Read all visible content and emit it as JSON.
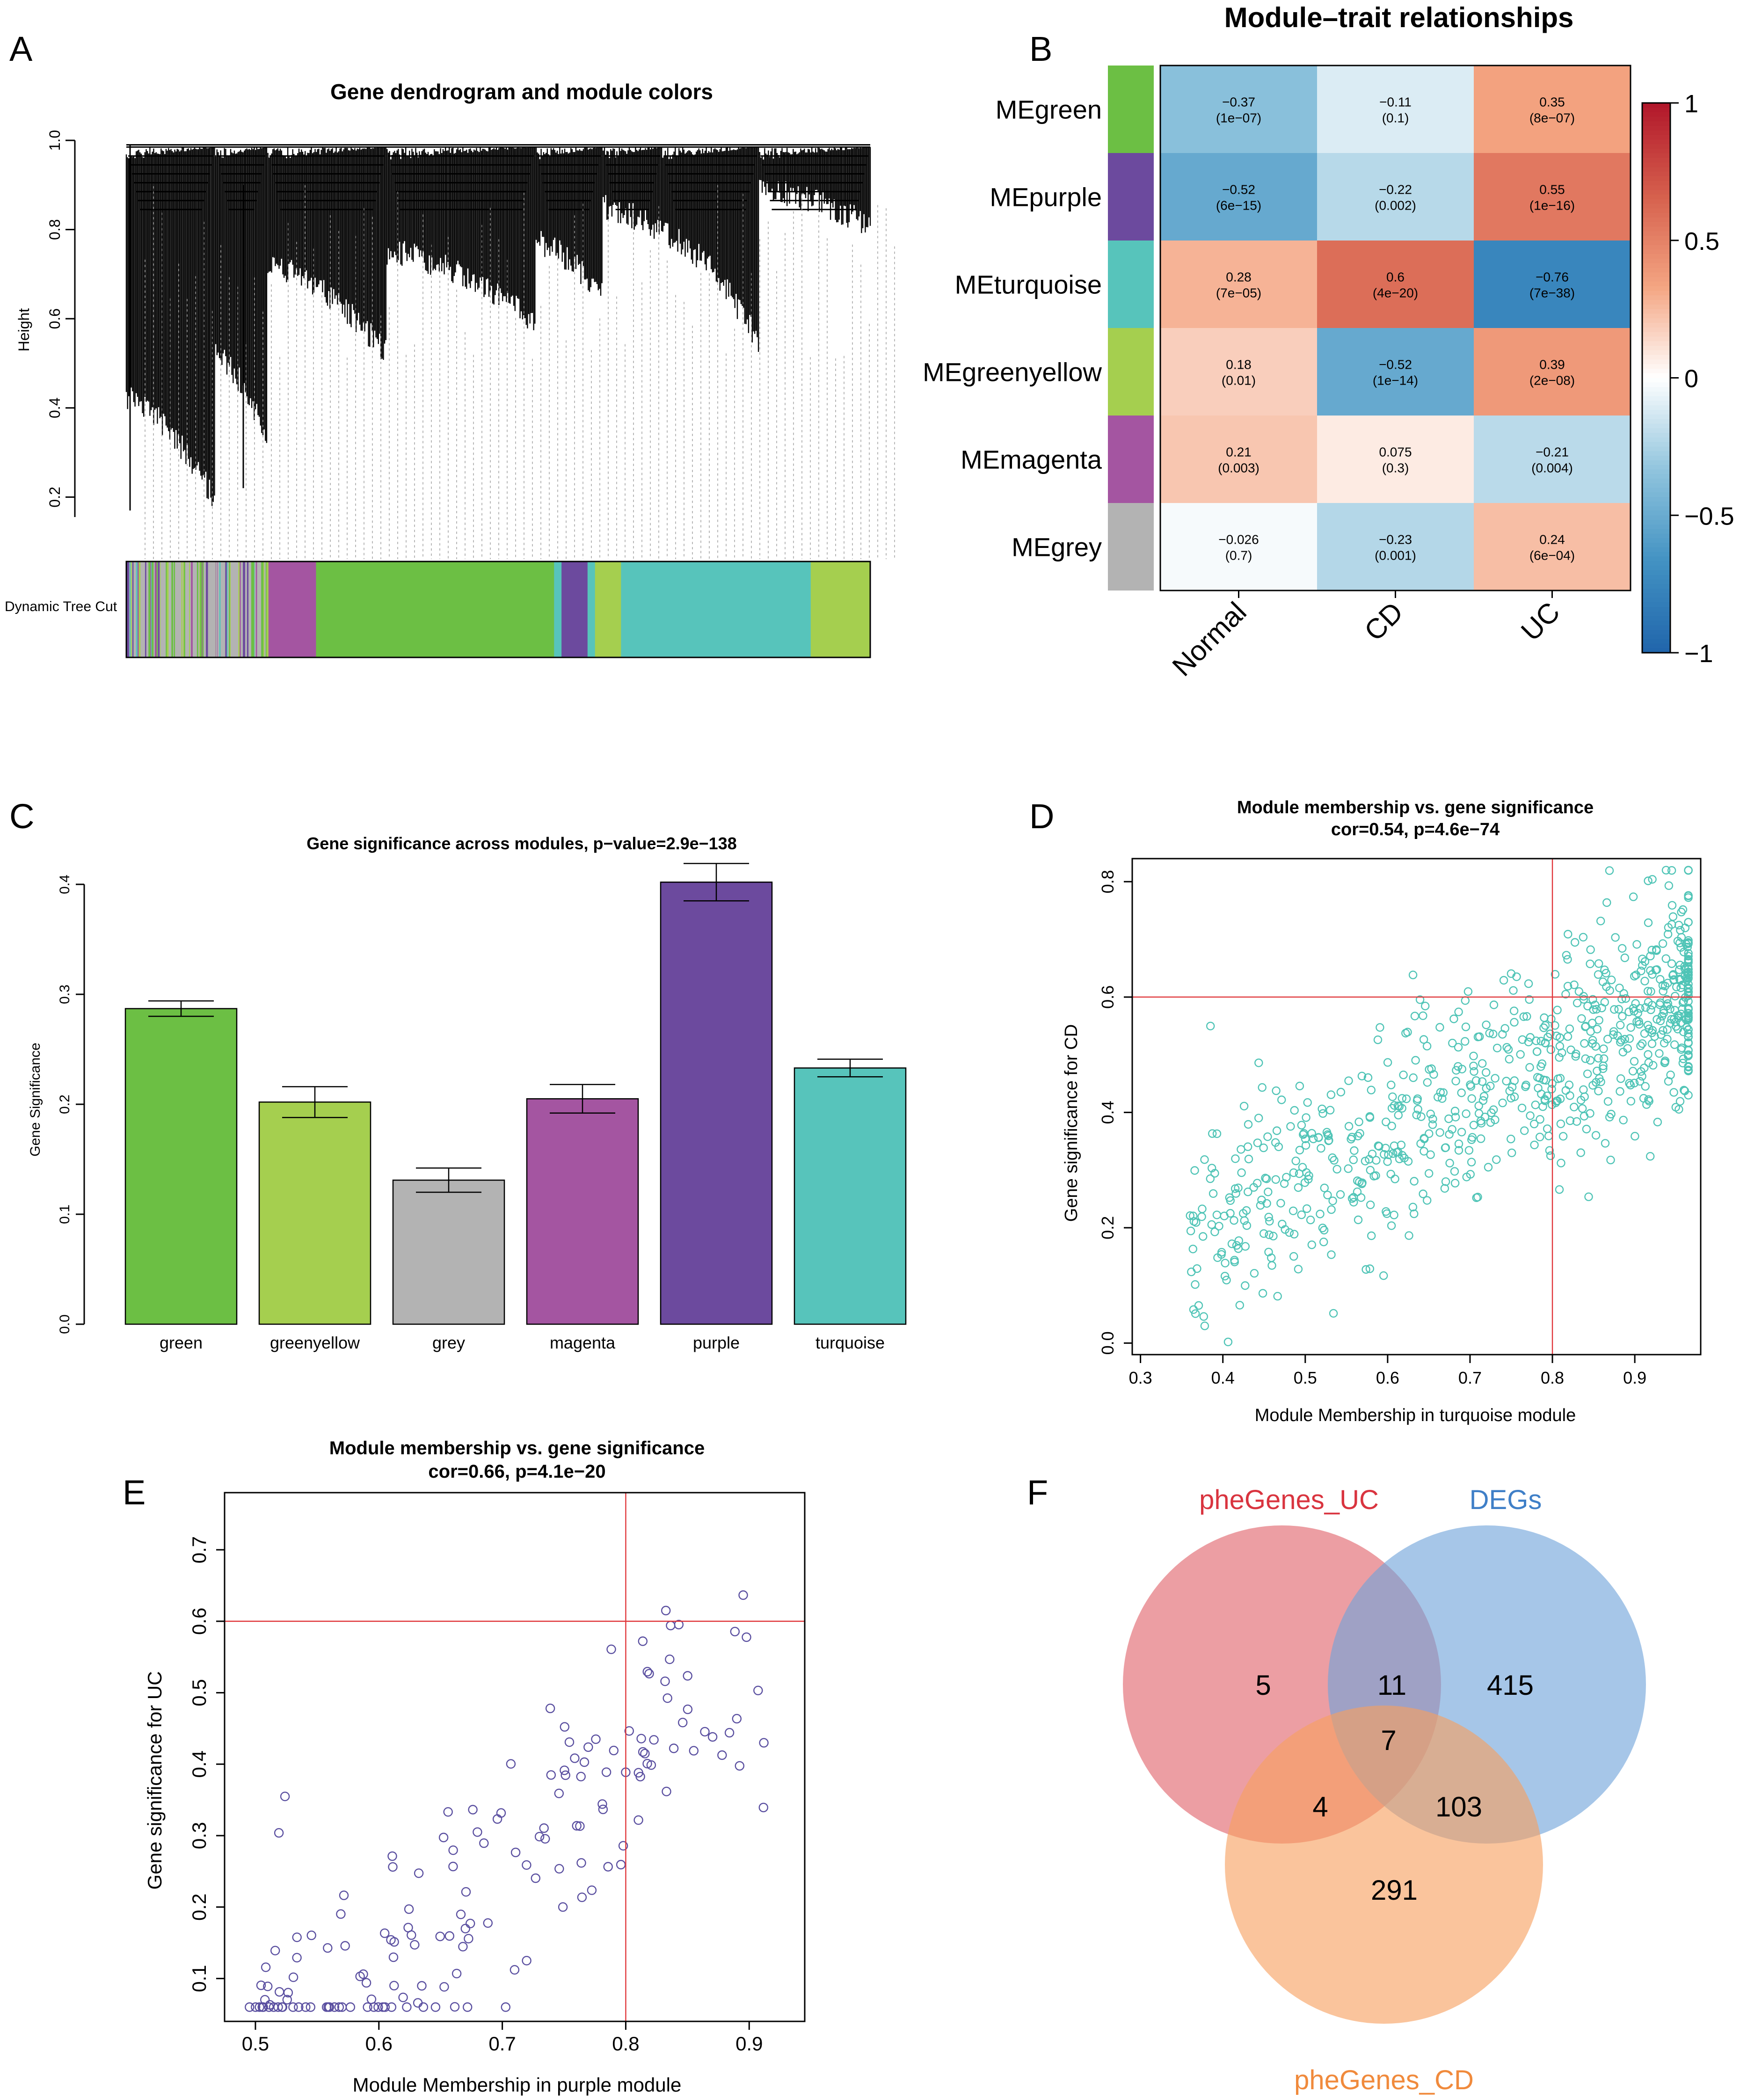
{
  "panels": {
    "A": {
      "letter": "A",
      "chart_data": {
        "type": "dendrogram",
        "title": "Gene dendrogram and module colors",
        "ylabel": "Height",
        "yticks": [
          "0.2",
          "0.4",
          "0.6",
          "0.8",
          "1.0"
        ],
        "ylim": [
          0.15,
          1.0
        ],
        "colorbar_label": "Dynamic Tree Cut",
        "colorbar_segments": [
          {
            "module": "grey",
            "frac": 0.19
          },
          {
            "module": "magenta",
            "frac": 0.065
          },
          {
            "module": "green",
            "frac": 0.32
          },
          {
            "module": "turquoise",
            "frac": 0.01
          },
          {
            "module": "purple",
            "frac": 0.035
          },
          {
            "module": "turquoise",
            "frac": 0.01
          },
          {
            "module": "greenyellow",
            "frac": 0.035
          },
          {
            "module": "turquoise",
            "frac": 0.255
          },
          {
            "module": "greenyellow",
            "frac": 0.08
          }
        ]
      }
    },
    "B": {
      "letter": "B",
      "chart_data": {
        "type": "heatmap",
        "title": "Module–trait relationships",
        "rows": [
          "MEgreen",
          "MEpurple",
          "MEturquoise",
          "MEgreenyellow",
          "MEmagenta",
          "MEgrey"
        ],
        "row_colors": [
          "green",
          "purple",
          "turquoise",
          "greenyellow",
          "magenta",
          "grey"
        ],
        "cols": [
          "Normal",
          "CD",
          "UC"
        ],
        "values": [
          [
            -0.37,
            -0.11,
            0.35
          ],
          [
            -0.52,
            -0.22,
            0.55
          ],
          [
            0.28,
            0.6,
            -0.76
          ],
          [
            0.18,
            -0.52,
            0.39
          ],
          [
            0.21,
            0.075,
            -0.21
          ],
          [
            -0.026,
            -0.23,
            0.24
          ]
        ],
        "labels": [
          [
            "−0.37",
            "−0.11",
            "0.35"
          ],
          [
            "−0.52",
            "−0.22",
            "0.55"
          ],
          [
            "0.28",
            "0.6",
            "−0.76"
          ],
          [
            "0.18",
            "−0.52",
            "0.39"
          ],
          [
            "0.21",
            "0.075",
            "−0.21"
          ],
          [
            "−0.026",
            "−0.23",
            "0.24"
          ]
        ],
        "pvalues": [
          [
            "(1e−07)",
            "(0.1)",
            "(8e−07)"
          ],
          [
            "(6e−15)",
            "(0.002)",
            "(1e−16)"
          ],
          [
            "(7e−05)",
            "(4e−20)",
            "(7e−38)"
          ],
          [
            "(0.01)",
            "(1e−14)",
            "(2e−08)"
          ],
          [
            "(0.003)",
            "(0.3)",
            "(0.004)"
          ],
          [
            "(0.7)",
            "(0.001)",
            "(6e−04)"
          ]
        ],
        "colorbar_ticks": [
          "1",
          "0.5",
          "0",
          "−0.5",
          "−1"
        ],
        "colorbar_values": [
          1,
          0.5,
          0,
          -0.5,
          -1
        ],
        "range": [
          -1,
          1
        ]
      }
    },
    "C": {
      "letter": "C",
      "chart_data": {
        "type": "bar",
        "title": "Gene significance across modules, p−value=2.9e−138",
        "ylabel": "Gene Significance",
        "categories": [
          "green",
          "greenyellow",
          "grey",
          "magenta",
          "purple",
          "turquoise"
        ],
        "values": [
          0.287,
          0.202,
          0.131,
          0.205,
          0.402,
          0.233
        ],
        "errors": [
          0.007,
          0.014,
          0.011,
          0.013,
          0.017,
          0.008
        ],
        "yticks": [
          0.0,
          0.1,
          0.2,
          0.3,
          0.4
        ],
        "ytick_labels": [
          "0.0",
          "0.1",
          "0.2",
          "0.3",
          "0.4"
        ],
        "ylim": [
          0,
          0.4
        ]
      }
    },
    "D": {
      "letter": "D",
      "chart_data": {
        "type": "scatter",
        "title": "Module membership vs. gene significance",
        "subtitle": "cor=0.54, p=4.6e−74",
        "xlabel": "Module Membership in turquoise module",
        "ylabel": "Gene significance for  CD",
        "xlim": [
          0.29,
          0.98
        ],
        "ylim": [
          -0.02,
          0.84
        ],
        "xticks": [
          0.3,
          0.4,
          0.5,
          0.6,
          0.7,
          0.8,
          0.9
        ],
        "xtick_labels": [
          "0.3",
          "0.4",
          "0.5",
          "0.6",
          "0.7",
          "0.8",
          "0.9"
        ],
        "yticks": [
          0.0,
          0.2,
          0.4,
          0.6,
          0.8
        ],
        "ytick_labels": [
          "0.0",
          "0.2",
          "0.4",
          "0.6",
          "0.8"
        ],
        "hline": 0.6,
        "vline": 0.8,
        "point_color": "#4fc4b6",
        "n_points": 780,
        "seed": 7,
        "cor": 0.54
      }
    },
    "E": {
      "letter": "E",
      "chart_data": {
        "type": "scatter",
        "title": "Module membership vs. gene significance",
        "subtitle": "cor=0.66, p=4.1e−20",
        "xlabel": "Module Membership in purple module",
        "ylabel": "Gene significance for  UC",
        "xlim": [
          0.475,
          0.945
        ],
        "ylim": [
          0.04,
          0.78
        ],
        "xticks": [
          0.5,
          0.6,
          0.7,
          0.8,
          0.9
        ],
        "xtick_labels": [
          "0.5",
          "0.6",
          "0.7",
          "0.8",
          "0.9"
        ],
        "yticks": [
          0.1,
          0.2,
          0.3,
          0.4,
          0.5,
          0.6,
          0.7
        ],
        "ytick_labels": [
          "0.1",
          "0.2",
          "0.3",
          "0.4",
          "0.5",
          "0.6",
          "0.7"
        ],
        "hline": 0.6,
        "vline": 0.8,
        "point_color": "#5a4fa0",
        "n_points": 165,
        "seed": 11,
        "cor": 0.66
      }
    },
    "F": {
      "letter": "F",
      "chart_data": {
        "type": "venn",
        "sets": [
          {
            "name": "pheGenes_UC",
            "color": "#e0626a",
            "label_color": "#d9343f"
          },
          {
            "name": "DEGs",
            "color": "#6fa3da",
            "label_color": "#3f7fc7"
          },
          {
            "name": "pheGenes_CD",
            "color": "#f7a060",
            "label_color": "#f08a3c"
          }
        ],
        "regions": {
          "UC_only": "5",
          "UC_DEGs": "11",
          "DEGs_only": "415",
          "all_three": "7",
          "UC_CD": "4",
          "DEGs_CD": "103",
          "CD_only": "291"
        }
      }
    }
  },
  "module_colors": {
    "green": "#6cbf44",
    "purple": "#6c4a9e",
    "turquoise": "#57c4bb",
    "greenyellow": "#a5cf4f",
    "magenta": "#a455a1",
    "grey": "#b3b3b3"
  }
}
